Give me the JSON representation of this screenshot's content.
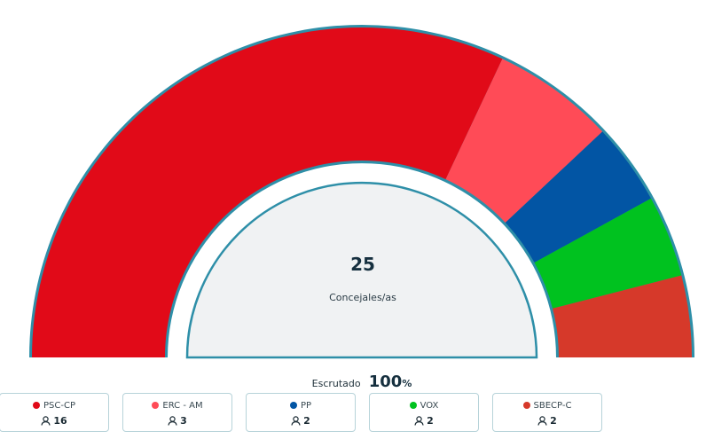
{
  "chart_data": {
    "type": "semicircle-parliament",
    "total_seats": 25,
    "total_seats_label": "25",
    "center_label": "Concejales/as",
    "scrutiny_label": "Escrutado",
    "scrutiny_value": "100",
    "scrutiny_unit": "%",
    "parties": [
      {
        "name": "PSC-CP",
        "seats": 16,
        "seats_label": "16",
        "color": "#e10a18"
      },
      {
        "name": "ERC - AM",
        "seats": 3,
        "seats_label": "3",
        "color": "#ff4b57"
      },
      {
        "name": "PP",
        "seats": 2,
        "seats_label": "2",
        "color": "#0255a4"
      },
      {
        "name": "VOX",
        "seats": 2,
        "seats_label": "2",
        "color": "#00c21f"
      },
      {
        "name": "SBECP-C",
        "seats": 2,
        "seats_label": "2",
        "color": "#d6392a"
      }
    ]
  },
  "icons": {
    "seats": "user-icon"
  },
  "colors": {
    "outline": "#2e8fa8",
    "center_fill": "#f0f2f3"
  }
}
